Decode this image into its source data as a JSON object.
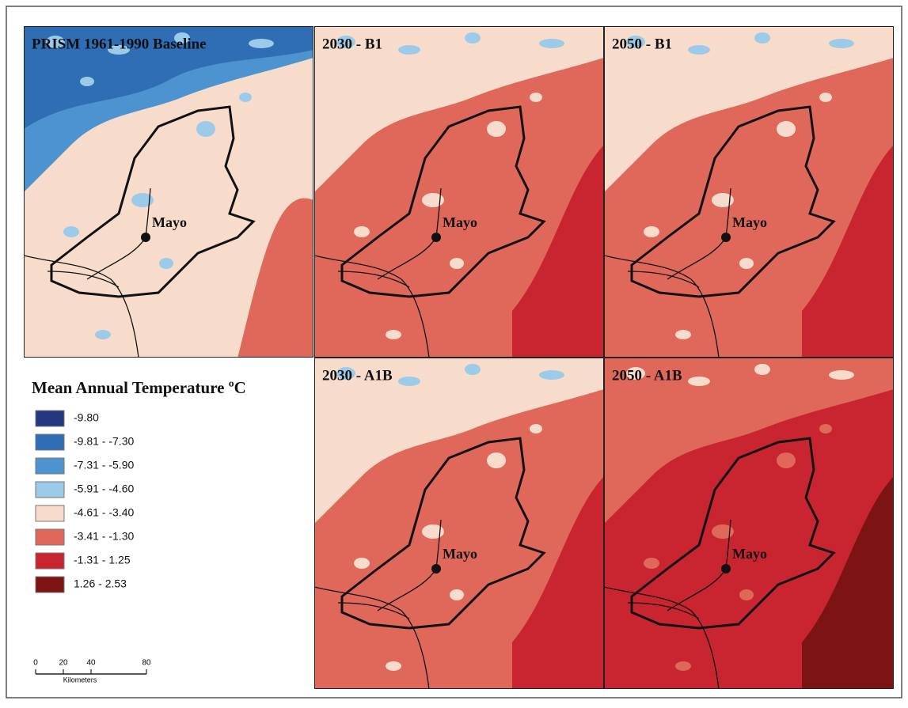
{
  "panels": [
    {
      "title": "PRISM 1961-1990 Baseline",
      "place": "Mayo"
    },
    {
      "title": "2030 - B1",
      "place": "Mayo"
    },
    {
      "title": "2050 - B1",
      "place": "Mayo"
    },
    {
      "title": "2030 - A1B",
      "place": "Mayo"
    },
    {
      "title": "2050 - A1B",
      "place": "Mayo"
    }
  ],
  "legend": {
    "title": "Mean Annual Temperature ºC",
    "items": [
      {
        "label": "-9.80",
        "color": "#22387f"
      },
      {
        "label": "-9.81 - -7.30",
        "color": "#2f6db5"
      },
      {
        "label": "-7.31 - -5.90",
        "color": "#4c93cf"
      },
      {
        "label": "-5.91 - -4.60",
        "color": "#9ccbe9"
      },
      {
        "label": "-4.61 - -3.40",
        "color": "#f8dccb"
      },
      {
        "label": "-3.41 - -1.30",
        "color": "#e0685a"
      },
      {
        "label": "-1.31 - 1.25",
        "color": "#c82530"
      },
      {
        "label": "1.26 - 2.53",
        "color": "#7d1414"
      }
    ]
  },
  "scale_bar": {
    "ticks": [
      0,
      20,
      40,
      80
    ],
    "unit": "Kilometers"
  }
}
